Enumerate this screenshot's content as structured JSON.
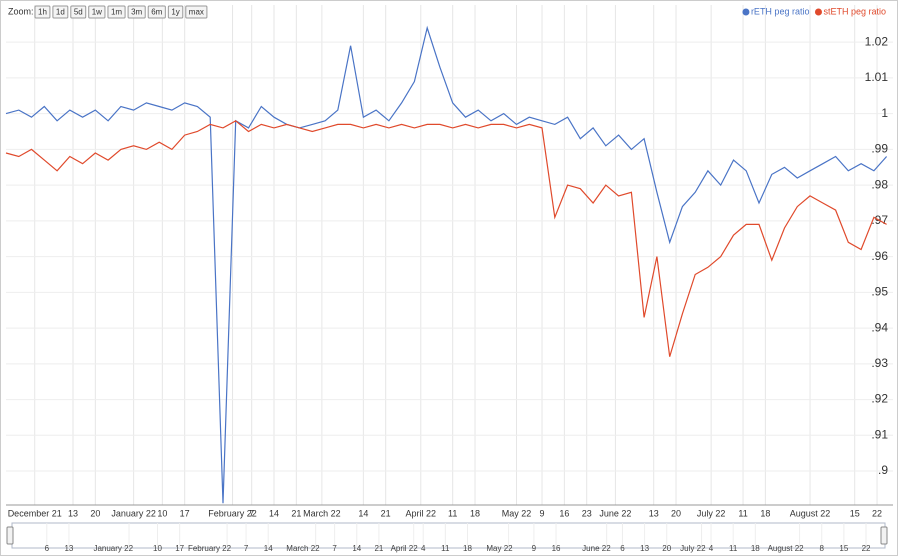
{
  "chart_data": {
    "type": "line",
    "zoom": {
      "label": "Zoom:",
      "buttons": [
        "1h",
        "1d",
        "5d",
        "1w",
        "1m",
        "3m",
        "6m",
        "1y",
        "max"
      ]
    },
    "legend": "top-right",
    "grid": true,
    "x": [
      "2021-11-22",
      "2021-11-26",
      "2021-11-30",
      "2021-12-04",
      "2021-12-08",
      "2021-12-12",
      "2021-12-16",
      "2021-12-20",
      "2021-12-24",
      "2021-12-28",
      "2022-01-01",
      "2022-01-05",
      "2022-01-09",
      "2022-01-13",
      "2022-01-17",
      "2022-01-21",
      "2022-01-25",
      "2022-01-29",
      "2022-02-02",
      "2022-02-06",
      "2022-02-10",
      "2022-02-14",
      "2022-02-18",
      "2022-02-22",
      "2022-02-26",
      "2022-03-02",
      "2022-03-06",
      "2022-03-10",
      "2022-03-14",
      "2022-03-18",
      "2022-03-22",
      "2022-03-26",
      "2022-03-30",
      "2022-04-03",
      "2022-04-07",
      "2022-04-11",
      "2022-04-15",
      "2022-04-19",
      "2022-04-23",
      "2022-04-27",
      "2022-05-01",
      "2022-05-05",
      "2022-05-09",
      "2022-05-13",
      "2022-05-17",
      "2022-05-21",
      "2022-05-25",
      "2022-05-29",
      "2022-06-02",
      "2022-06-06",
      "2022-06-10",
      "2022-06-14",
      "2022-06-18",
      "2022-06-22",
      "2022-06-26",
      "2022-06-30",
      "2022-07-04",
      "2022-07-08",
      "2022-07-12",
      "2022-07-16",
      "2022-07-20",
      "2022-07-24",
      "2022-07-28",
      "2022-08-01",
      "2022-08-05",
      "2022-08-09",
      "2022-08-13",
      "2022-08-17",
      "2022-08-21",
      "2022-08-25"
    ],
    "series": [
      {
        "name": "rETH peg ratio",
        "color": "#4a74c6",
        "values": [
          1.0,
          1.001,
          0.999,
          1.002,
          0.998,
          1.001,
          0.999,
          1.001,
          0.998,
          1.002,
          1.001,
          1.003,
          1.002,
          1.001,
          1.003,
          1.002,
          0.999,
          0.891,
          0.998,
          0.996,
          1.002,
          0.999,
          0.997,
          0.996,
          0.997,
          0.998,
          1.001,
          1.019,
          0.999,
          1.001,
          0.998,
          1.003,
          1.009,
          1.024,
          1.013,
          1.003,
          0.999,
          1.001,
          0.998,
          1.0,
          0.997,
          0.999,
          0.998,
          0.997,
          0.999,
          0.993,
          0.996,
          0.991,
          0.994,
          0.99,
          0.993,
          0.978,
          0.964,
          0.974,
          0.978,
          0.984,
          0.98,
          0.987,
          0.984,
          0.975,
          0.983,
          0.985,
          0.982,
          0.984,
          0.986,
          0.988,
          0.984,
          0.986,
          0.984,
          0.988
        ]
      },
      {
        "name": "stETH peg ratio",
        "color": "#e04a2c",
        "values": [
          0.989,
          0.988,
          0.99,
          0.987,
          0.984,
          0.988,
          0.986,
          0.989,
          0.987,
          0.99,
          0.991,
          0.99,
          0.992,
          0.99,
          0.994,
          0.995,
          0.997,
          0.996,
          0.998,
          0.995,
          0.997,
          0.996,
          0.997,
          0.996,
          0.995,
          0.996,
          0.997,
          0.997,
          0.996,
          0.997,
          0.996,
          0.997,
          0.996,
          0.997,
          0.997,
          0.996,
          0.997,
          0.996,
          0.997,
          0.997,
          0.996,
          0.997,
          0.996,
          0.971,
          0.98,
          0.979,
          0.975,
          0.98,
          0.977,
          0.978,
          0.943,
          0.96,
          0.932,
          0.944,
          0.955,
          0.957,
          0.96,
          0.966,
          0.969,
          0.969,
          0.959,
          0.968,
          0.974,
          0.977,
          0.975,
          0.973,
          0.964,
          0.962,
          0.971,
          0.969
        ]
      }
    ],
    "xlim": [
      "2021-11-22",
      "2022-08-27"
    ],
    "xticks": [
      {
        "value": "2021-12-01",
        "label": "December 21"
      },
      {
        "value": "2021-12-13",
        "label": "13"
      },
      {
        "value": "2021-12-20",
        "label": "20"
      },
      {
        "value": "2022-01-01",
        "label": "January 22"
      },
      {
        "value": "2022-01-10",
        "label": "10"
      },
      {
        "value": "2022-01-17",
        "label": "17"
      },
      {
        "value": "2022-02-01",
        "label": "February 22"
      },
      {
        "value": "2022-02-07",
        "label": "7"
      },
      {
        "value": "2022-02-14",
        "label": "14"
      },
      {
        "value": "2022-02-21",
        "label": "21"
      },
      {
        "value": "2022-03-01",
        "label": "March 22"
      },
      {
        "value": "2022-03-14",
        "label": "14"
      },
      {
        "value": "2022-03-21",
        "label": "21"
      },
      {
        "value": "2022-04-01",
        "label": "April 22"
      },
      {
        "value": "2022-04-11",
        "label": "11"
      },
      {
        "value": "2022-04-18",
        "label": "18"
      },
      {
        "value": "2022-05-01",
        "label": "May 22"
      },
      {
        "value": "2022-05-09",
        "label": "9"
      },
      {
        "value": "2022-05-16",
        "label": "16"
      },
      {
        "value": "2022-05-23",
        "label": "23"
      },
      {
        "value": "2022-06-01",
        "label": "June 22"
      },
      {
        "value": "2022-06-13",
        "label": "13"
      },
      {
        "value": "2022-06-20",
        "label": "20"
      },
      {
        "value": "2022-07-01",
        "label": "July 22"
      },
      {
        "value": "2022-07-11",
        "label": "11"
      },
      {
        "value": "2022-07-18",
        "label": "18"
      },
      {
        "value": "2022-08-01",
        "label": "August 22"
      },
      {
        "value": "2022-08-15",
        "label": "15"
      },
      {
        "value": "2022-08-22",
        "label": "22"
      }
    ],
    "ylim": [
      0.8905,
      1.0304
    ],
    "yticks": [
      1.02,
      1.01,
      1,
      {
        "value": 0.99,
        "label": ".99"
      },
      {
        "value": 0.98,
        "label": ".98"
      },
      {
        "value": 0.97,
        "label": ".97"
      },
      {
        "value": 0.96,
        "label": ".96"
      },
      {
        "value": 0.95,
        "label": ".95"
      },
      {
        "value": 0.94,
        "label": ".94"
      },
      {
        "value": 0.93,
        "label": ".93"
      },
      {
        "value": 0.92,
        "label": ".92"
      },
      {
        "value": 0.91,
        "label": ".91"
      },
      {
        "value": 0.9,
        "label": ".9"
      }
    ],
    "navigator_xlim": [
      "2021-11-25",
      "2022-08-28"
    ],
    "navigator_xticks": [
      {
        "value": "2021-12-06",
        "label": "6"
      },
      {
        "value": "2021-12-13",
        "label": "13"
      },
      {
        "value": "2022-01-01",
        "label": "January 22"
      },
      {
        "value": "2022-01-10",
        "label": "10"
      },
      {
        "value": "2022-01-17",
        "label": "17"
      },
      {
        "value": "2022-02-01",
        "label": "February 22"
      },
      {
        "value": "2022-02-07",
        "label": "7"
      },
      {
        "value": "2022-02-14",
        "label": "14"
      },
      {
        "value": "2022-03-01",
        "label": "March 22"
      },
      {
        "value": "2022-03-07",
        "label": "7"
      },
      {
        "value": "2022-03-14",
        "label": "14"
      },
      {
        "value": "2022-03-21",
        "label": "21"
      },
      {
        "value": "2022-04-01",
        "label": "April 22"
      },
      {
        "value": "2022-04-04",
        "label": "4"
      },
      {
        "value": "2022-04-11",
        "label": "11"
      },
      {
        "value": "2022-04-18",
        "label": "18"
      },
      {
        "value": "2022-05-01",
        "label": "May 22"
      },
      {
        "value": "2022-05-09",
        "label": "9"
      },
      {
        "value": "2022-05-16",
        "label": "16"
      },
      {
        "value": "2022-06-01",
        "label": "June 22"
      },
      {
        "value": "2022-06-06",
        "label": "6"
      },
      {
        "value": "2022-06-13",
        "label": "13"
      },
      {
        "value": "2022-06-20",
        "label": "20"
      },
      {
        "value": "2022-07-01",
        "label": "July 22"
      },
      {
        "value": "2022-07-04",
        "label": "4"
      },
      {
        "value": "2022-07-11",
        "label": "11"
      },
      {
        "value": "2022-07-18",
        "label": "18"
      },
      {
        "value": "2022-08-01",
        "label": "August 22"
      },
      {
        "value": "2022-08-08",
        "label": "8"
      },
      {
        "value": "2022-08-15",
        "label": "15"
      },
      {
        "value": "2022-08-22",
        "label": "22"
      }
    ]
  }
}
